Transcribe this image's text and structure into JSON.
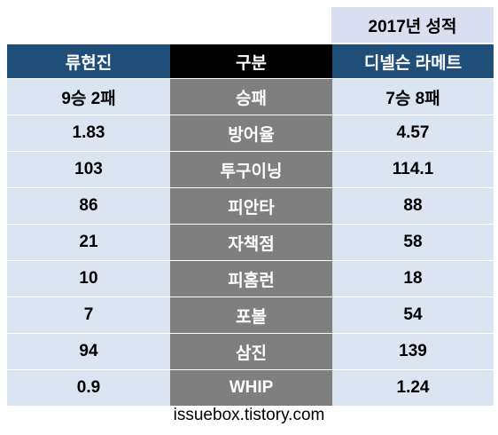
{
  "season_label": "2017년 성적",
  "headers": {
    "player": "류현진",
    "category": "구분",
    "opponent": "디넬슨 라메트"
  },
  "rows": [
    {
      "player": "9승 2패",
      "category": "승패",
      "opponent": "7승 8패"
    },
    {
      "player": "1.83",
      "category": "방어율",
      "opponent": "4.57"
    },
    {
      "player": "103",
      "category": "투구이닝",
      "opponent": "114.1"
    },
    {
      "player": "86",
      "category": "피안타",
      "opponent": "88"
    },
    {
      "player": "21",
      "category": "자책점",
      "opponent": "58"
    },
    {
      "player": "10",
      "category": "피홈런",
      "opponent": "18"
    },
    {
      "player": "7",
      "category": "포볼",
      "opponent": "54"
    },
    {
      "player": "94",
      "category": "삼진",
      "opponent": "139"
    },
    {
      "player": "0.9",
      "category": "WHIP",
      "opponent": "1.24"
    }
  ],
  "source": "issuebox.tistory.com",
  "colors": {
    "header_blue": "#1f4e79",
    "header_black": "#000000",
    "cell_light_blue": "#dbe5f1",
    "cell_gray": "#7f7f7f",
    "season_label_bg": "#d9dff0"
  }
}
